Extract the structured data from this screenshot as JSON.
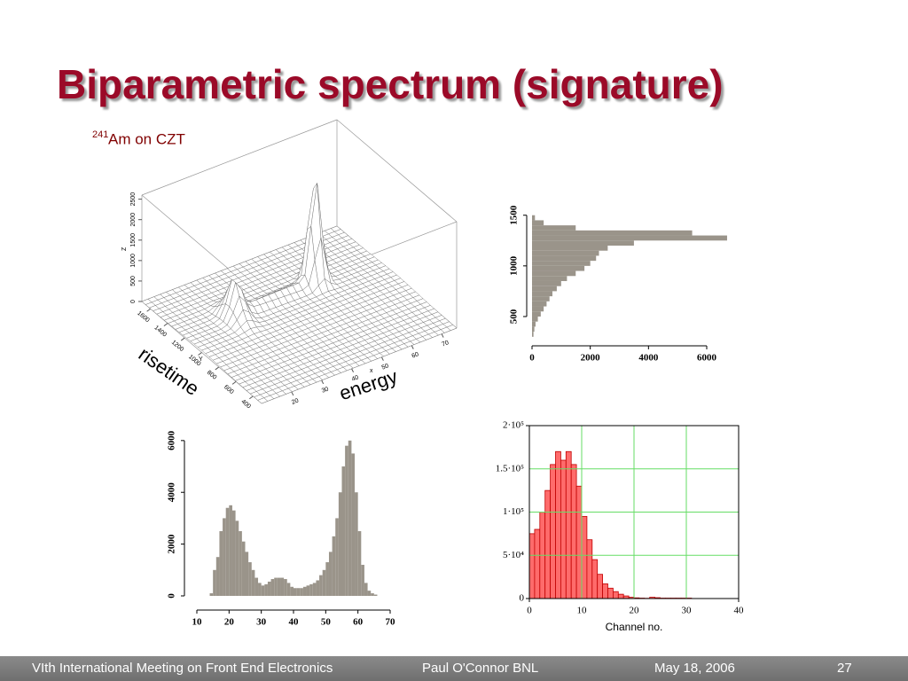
{
  "title": "Biparametric spectrum (signature)",
  "subtitle": {
    "superscript": "241",
    "text": "Am on CZT"
  },
  "footer": [
    "VIth International Meeting on Front End Electronics",
    "Paul O'Connor BNL",
    "May 18, 2006",
    "27"
  ],
  "chart_data": [
    {
      "type": "surface3d",
      "xlabel": "x",
      "ylabel": "Y",
      "zlabel": "Z",
      "xlim": [
        10,
        75
      ],
      "xticks": [
        20,
        30,
        40,
        50,
        60,
        70
      ],
      "ylim": [
        300,
        1700
      ],
      "yticks": [
        400,
        600,
        800,
        1000,
        1200,
        1400,
        1600
      ],
      "zlim": [
        0,
        2600
      ],
      "zticks": [
        0,
        500,
        1000,
        1500,
        2000,
        2500
      ],
      "annotations": [
        "risetime",
        "energy"
      ]
    },
    {
      "type": "histogram",
      "orientation": "horizontal",
      "color": "#9a948a",
      "bins": [
        300,
        350,
        400,
        450,
        500,
        550,
        600,
        650,
        700,
        750,
        800,
        850,
        900,
        950,
        1000,
        1050,
        1100,
        1150,
        1200,
        1250,
        1300,
        1350,
        1400,
        1450,
        1500
      ],
      "values": [
        50,
        80,
        120,
        200,
        300,
        400,
        500,
        600,
        700,
        850,
        1000,
        1200,
        1500,
        1800,
        2000,
        2200,
        2300,
        2600,
        3500,
        6700,
        5500,
        1500,
        400,
        100
      ],
      "xlim": [
        0,
        6000
      ],
      "xticks": [
        0,
        2000,
        4000,
        6000
      ],
      "ylim": [
        400,
        1550
      ],
      "yticks": [
        500,
        1000,
        1500
      ]
    },
    {
      "type": "histogram",
      "orientation": "vertical",
      "color": "#9a948a",
      "bins": [
        14,
        15,
        16,
        17,
        18,
        19,
        20,
        21,
        22,
        23,
        24,
        25,
        26,
        27,
        28,
        29,
        30,
        31,
        32,
        33,
        34,
        35,
        36,
        37,
        38,
        39,
        40,
        41,
        42,
        43,
        44,
        45,
        46,
        47,
        48,
        49,
        50,
        51,
        52,
        53,
        54,
        55,
        56,
        57,
        58,
        59,
        60,
        61,
        62,
        63,
        64,
        65,
        66
      ],
      "values": [
        100,
        1000,
        1500,
        2500,
        3000,
        3400,
        3500,
        3300,
        2900,
        2500,
        2100,
        1700,
        1300,
        1000,
        700,
        500,
        400,
        450,
        550,
        650,
        700,
        700,
        700,
        650,
        500,
        350,
        300,
        300,
        300,
        350,
        400,
        450,
        500,
        600,
        800,
        1000,
        1300,
        1700,
        2300,
        3000,
        4000,
        5000,
        5800,
        6000,
        5500,
        4000,
        2500,
        1200,
        500,
        200,
        100,
        50
      ],
      "xlim": [
        10,
        70
      ],
      "xticks": [
        10,
        20,
        30,
        40,
        50,
        60,
        70
      ],
      "ylim": [
        0,
        6200
      ],
      "yticks": [
        0,
        2000,
        4000,
        6000
      ]
    },
    {
      "type": "histogram",
      "orientation": "vertical",
      "color": "#ff6b6b",
      "edge_color": "#c00000",
      "grid": true,
      "grid_color": "#66dd66",
      "xlabel": "Channel no.",
      "bins": [
        0,
        1,
        2,
        3,
        4,
        5,
        6,
        7,
        8,
        9,
        10,
        11,
        12,
        13,
        14,
        15,
        16,
        17,
        18,
        19,
        20,
        21,
        22,
        23,
        24,
        25,
        26,
        27,
        28,
        29,
        30,
        31
      ],
      "values": [
        75000,
        80000,
        100000,
        125000,
        155000,
        170000,
        160000,
        170000,
        155000,
        130000,
        95000,
        68000,
        45000,
        28000,
        17000,
        12000,
        8000,
        5000,
        3000,
        1500,
        800,
        500,
        300,
        1500,
        1000,
        500,
        500,
        500,
        500,
        500,
        500
      ],
      "xlim": [
        0,
        40
      ],
      "xticks": [
        0,
        10,
        20,
        30,
        40
      ],
      "ylim": [
        0,
        200000
      ],
      "yticks": [
        0,
        {
          "value": 50000,
          "label": "5·10⁴"
        },
        {
          "value": 100000,
          "label": "1·10⁵"
        },
        {
          "value": 150000,
          "label": "1.5·10⁵"
        },
        {
          "value": 200000,
          "label": "2·10⁵"
        }
      ]
    }
  ]
}
